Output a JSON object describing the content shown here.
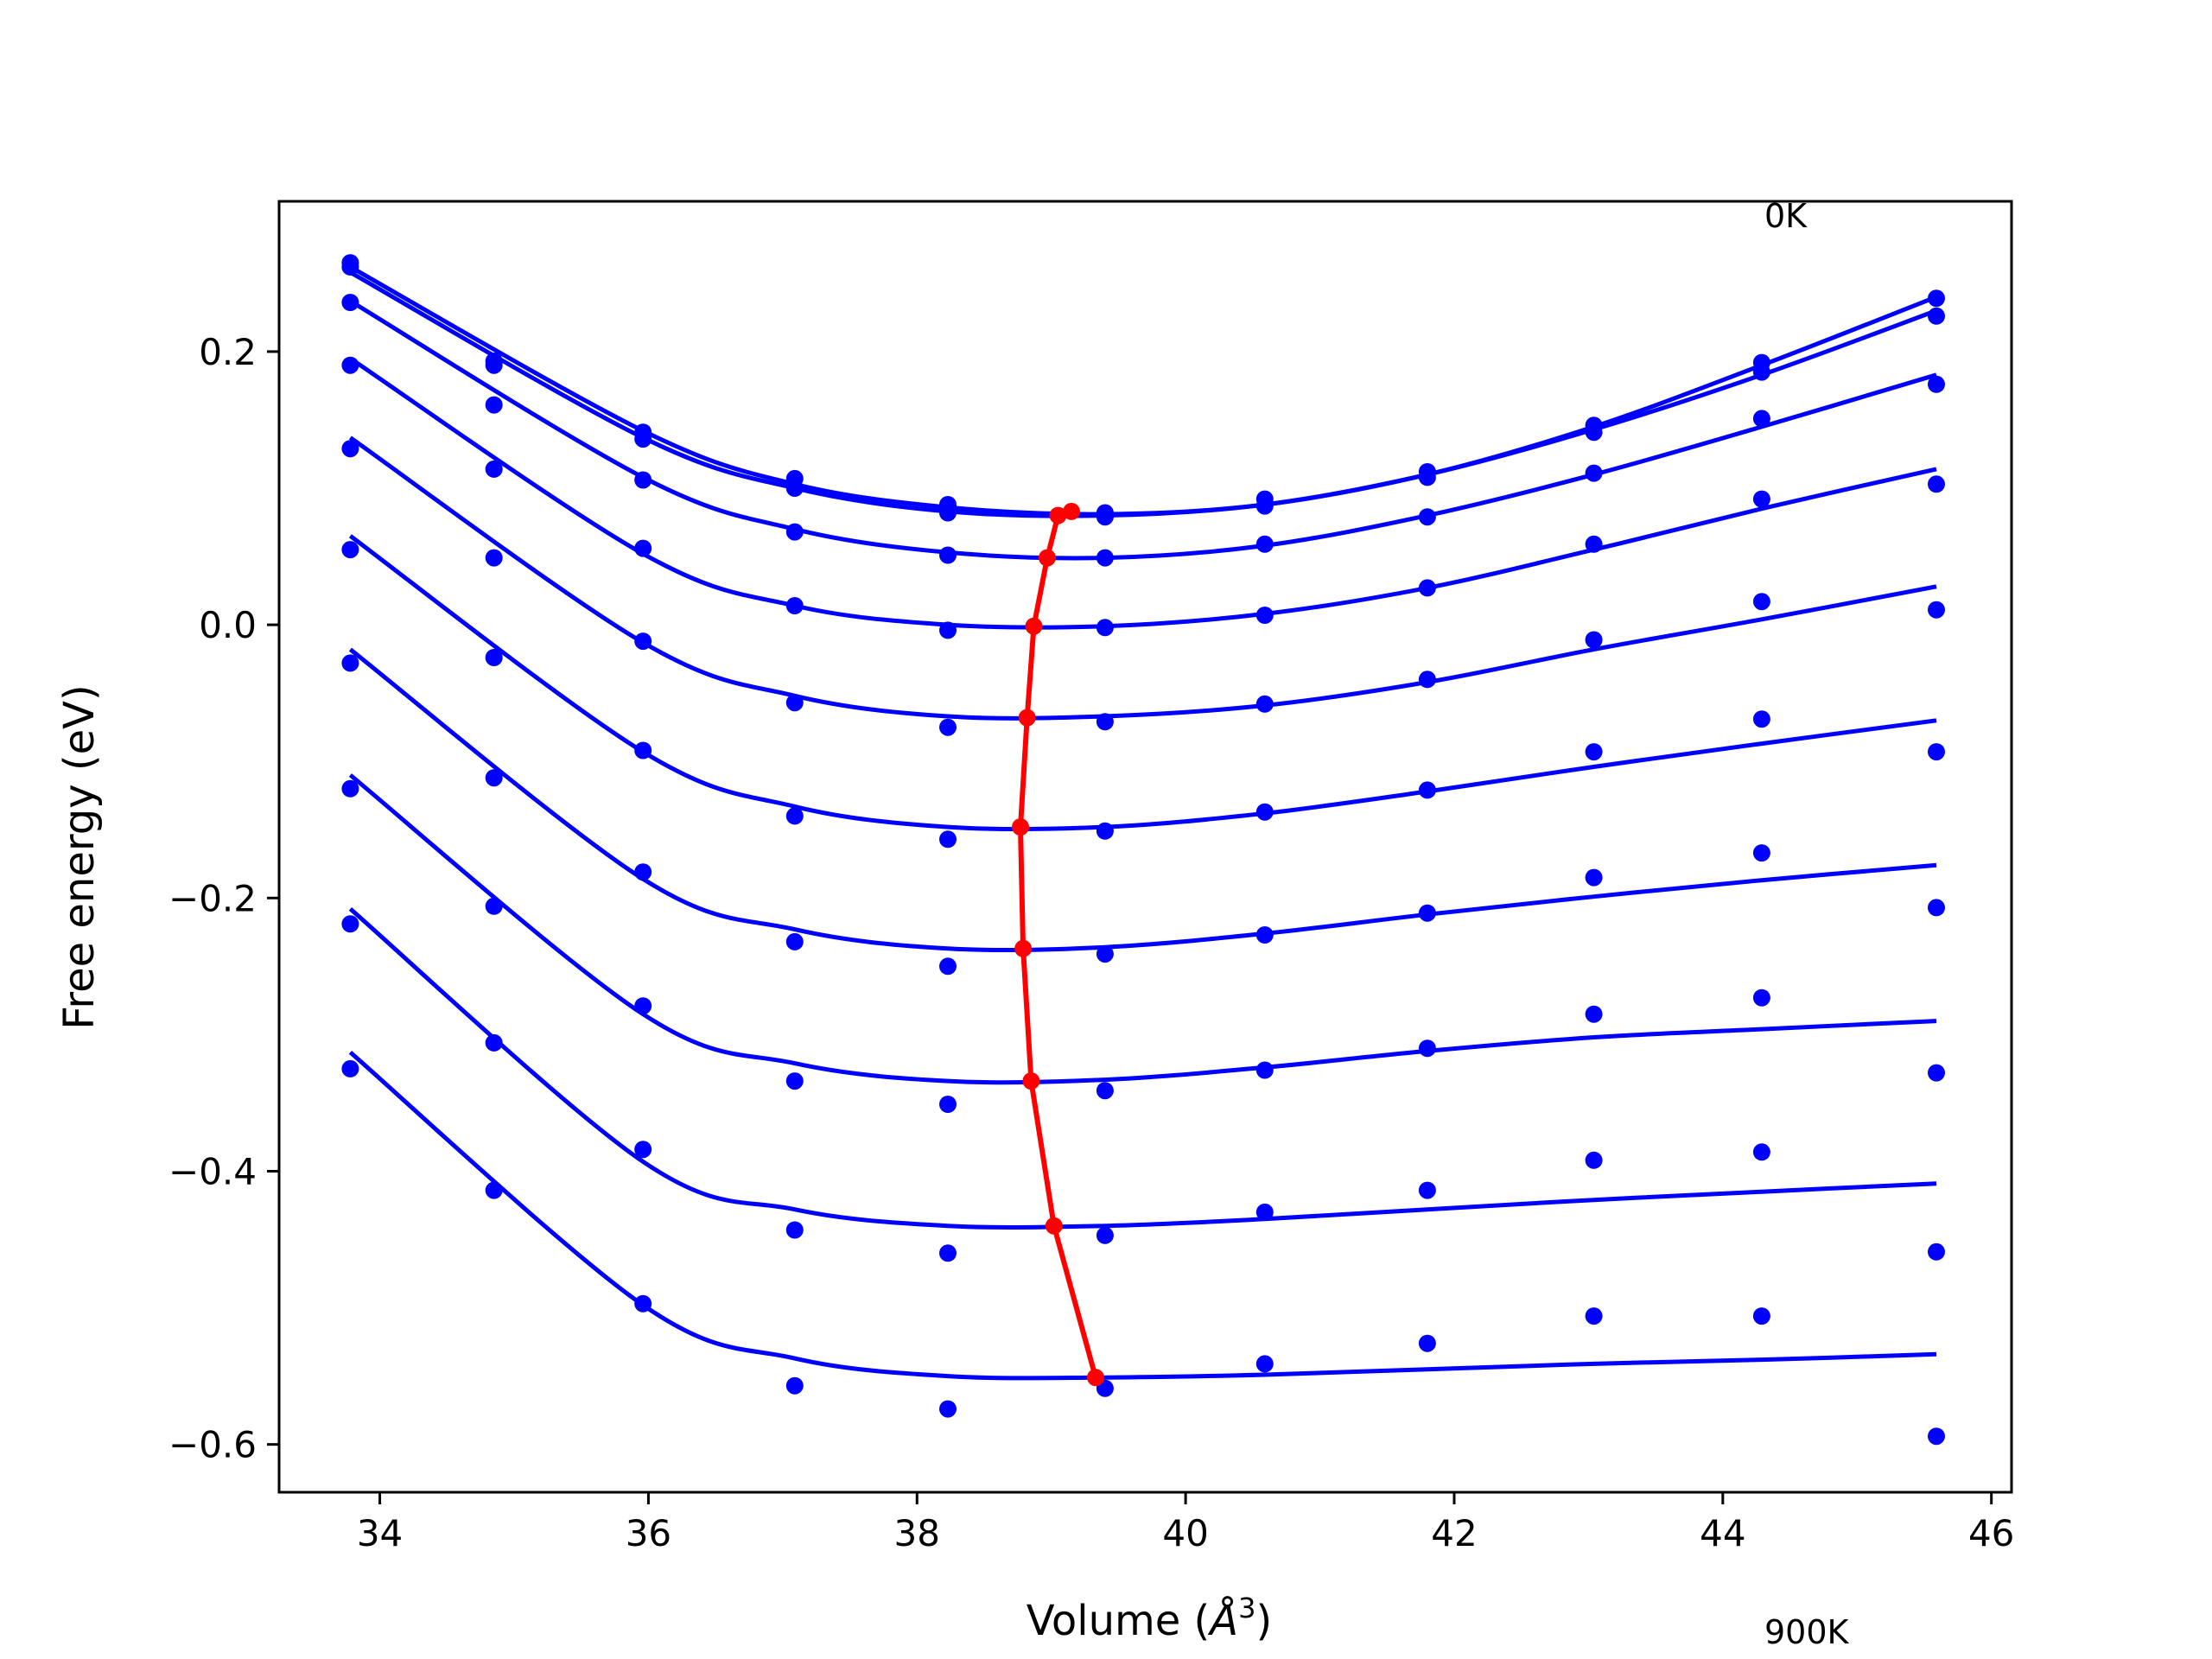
{
  "chart_data": {
    "type": "scatter",
    "title": "",
    "xlabel": "Volume (Å³)",
    "xlabel_parts": {
      "prefix": "Volume (",
      "symbol": "Å",
      "superscript": "3",
      "suffix": ")"
    },
    "ylabel": "Free energy (eV)",
    "xlim": [
      33.25,
      46.15
    ],
    "ylim": [
      -0.635,
      0.31
    ],
    "xticks": [
      34,
      36,
      38,
      40,
      42,
      44,
      46
    ],
    "xtick_labels": [
      "34",
      "36",
      "38",
      "40",
      "42",
      "44",
      "46"
    ],
    "yticks": [
      0.2,
      0.0,
      -0.2,
      -0.4,
      -0.6
    ],
    "ytick_labels": [
      "0.2",
      "0.0",
      "−0.2",
      "−0.4",
      "−0.6"
    ],
    "grid": false,
    "legend": "none",
    "annotations": [
      "0K",
      "900K"
    ],
    "colors": {
      "data": "#0000ff",
      "minimum_line": "#ff0000",
      "frame": "#000000",
      "background": "#ffffff"
    },
    "x_points": [
      33.78,
      34.85,
      35.96,
      37.09,
      38.23,
      39.4,
      40.59,
      41.8,
      43.04,
      44.29,
      45.59
    ],
    "series": [
      {
        "fit_points": [
          [
            33.78,
            0.262
          ],
          [
            35.96,
            0.142
          ],
          [
            37.09,
            0.103
          ],
          [
            38.23,
            0.086
          ],
          [
            39.4,
            0.081
          ],
          [
            40.59,
            0.088
          ],
          [
            41.8,
            0.11
          ],
          [
            43.04,
            0.145
          ],
          [
            44.29,
            0.19
          ],
          [
            45.59,
            0.24
          ]
        ],
        "points": [
          0.265,
          0.193,
          0.141,
          0.107,
          0.088,
          0.082,
          0.092,
          0.112,
          0.146,
          0.192,
          0.239
        ]
      },
      {
        "fit_points": [
          [
            33.78,
            0.258
          ],
          [
            35.96,
            0.137
          ],
          [
            37.09,
            0.1
          ],
          [
            38.23,
            0.083
          ],
          [
            39.4,
            0.08
          ],
          [
            40.59,
            0.088
          ],
          [
            41.8,
            0.11
          ],
          [
            43.04,
            0.143
          ],
          [
            44.29,
            0.183
          ],
          [
            45.59,
            0.23
          ]
        ],
        "points": [
          0.262,
          0.19,
          0.136,
          0.1,
          0.082,
          0.079,
          0.087,
          0.108,
          0.141,
          0.185,
          0.226
        ]
      },
      {
        "fit_points": [
          [
            33.78,
            0.237
          ],
          [
            35.96,
            0.108
          ],
          [
            37.09,
            0.07
          ],
          [
            38.23,
            0.053
          ],
          [
            39.4,
            0.049
          ],
          [
            40.59,
            0.058
          ],
          [
            41.8,
            0.08
          ],
          [
            43.04,
            0.11
          ],
          [
            44.29,
            0.145
          ],
          [
            45.59,
            0.183
          ]
        ],
        "points": [
          0.236,
          0.161,
          0.106,
          0.068,
          0.051,
          0.049,
          0.059,
          0.079,
          0.111,
          0.151,
          0.176
        ]
      },
      {
        "fit_points": [
          [
            33.78,
            0.195
          ],
          [
            35.96,
            0.052
          ],
          [
            37.09,
            0.014
          ],
          [
            38.23,
            0.0
          ],
          [
            39.4,
            -0.001
          ],
          [
            40.59,
            0.008
          ],
          [
            41.8,
            0.027
          ],
          [
            43.04,
            0.055
          ],
          [
            44.29,
            0.085
          ],
          [
            45.59,
            0.114
          ]
        ],
        "points": [
          0.19,
          0.114,
          0.056,
          0.014,
          -0.004,
          -0.002,
          0.007,
          0.027,
          0.059,
          0.092,
          0.103
        ]
      },
      {
        "fit_points": [
          [
            33.78,
            0.137
          ],
          [
            35.96,
            -0.013
          ],
          [
            37.09,
            -0.052
          ],
          [
            38.23,
            -0.067
          ],
          [
            39.4,
            -0.067
          ],
          [
            40.59,
            -0.059
          ],
          [
            41.8,
            -0.042
          ],
          [
            43.04,
            -0.018
          ],
          [
            44.29,
            0.004
          ],
          [
            45.59,
            0.028
          ]
        ],
        "points": [
          0.129,
          0.049,
          -0.012,
          -0.057,
          -0.075,
          -0.071,
          -0.058,
          -0.04,
          -0.011,
          0.017,
          0.011
        ]
      },
      {
        "fit_points": [
          [
            33.78,
            0.065
          ],
          [
            35.96,
            -0.093
          ],
          [
            37.09,
            -0.133
          ],
          [
            38.23,
            -0.148
          ],
          [
            39.4,
            -0.148
          ],
          [
            40.59,
            -0.138
          ],
          [
            41.8,
            -0.122
          ],
          [
            43.04,
            -0.104
          ],
          [
            44.29,
            -0.087
          ],
          [
            45.59,
            -0.07
          ]
        ],
        "points": [
          0.055,
          -0.024,
          -0.092,
          -0.14,
          -0.157,
          -0.151,
          -0.137,
          -0.121,
          -0.093,
          -0.069,
          -0.093
        ]
      },
      {
        "fit_points": [
          [
            33.78,
            -0.018
          ],
          [
            35.96,
            -0.186
          ],
          [
            37.09,
            -0.223
          ],
          [
            38.23,
            -0.237
          ],
          [
            39.4,
            -0.236
          ],
          [
            40.59,
            -0.226
          ],
          [
            41.8,
            -0.212
          ],
          [
            43.04,
            -0.199
          ],
          [
            44.29,
            -0.187
          ],
          [
            45.59,
            -0.176
          ]
        ],
        "points": [
          -0.028,
          -0.112,
          -0.181,
          -0.232,
          -0.25,
          -0.241,
          -0.227,
          -0.211,
          -0.185,
          -0.167,
          -0.207
        ]
      },
      {
        "fit_points": [
          [
            33.78,
            -0.11
          ],
          [
            35.96,
            -0.285
          ],
          [
            37.09,
            -0.321
          ],
          [
            38.23,
            -0.334
          ],
          [
            39.4,
            -0.333
          ],
          [
            40.59,
            -0.324
          ],
          [
            41.8,
            -0.312
          ],
          [
            43.04,
            -0.302
          ],
          [
            44.29,
            -0.296
          ],
          [
            45.59,
            -0.29
          ]
        ],
        "points": [
          -0.12,
          -0.206,
          -0.279,
          -0.334,
          -0.351,
          -0.341,
          -0.326,
          -0.31,
          -0.285,
          -0.273,
          -0.328
        ]
      },
      {
        "fit_points": [
          [
            33.78,
            -0.208
          ],
          [
            35.96,
            -0.393
          ],
          [
            37.09,
            -0.428
          ],
          [
            38.23,
            -0.44
          ],
          [
            39.4,
            -0.44
          ],
          [
            40.59,
            -0.435
          ],
          [
            41.8,
            -0.428
          ],
          [
            43.04,
            -0.421
          ],
          [
            44.29,
            -0.415
          ],
          [
            45.59,
            -0.409
          ]
        ],
        "points": [
          -0.219,
          -0.306,
          -0.384,
          -0.443,
          -0.46,
          -0.447,
          -0.43,
          -0.414,
          -0.392,
          -0.386,
          -0.459
        ]
      },
      {
        "fit_points": [
          [
            33.78,
            -0.313
          ],
          [
            35.96,
            -0.498
          ],
          [
            37.09,
            -0.537
          ],
          [
            38.23,
            -0.55
          ],
          [
            39.4,
            -0.551
          ],
          [
            40.59,
            -0.549
          ],
          [
            41.8,
            -0.545
          ],
          [
            43.04,
            -0.541
          ],
          [
            44.29,
            -0.538
          ],
          [
            45.59,
            -0.534
          ]
        ],
        "points": [
          -0.325,
          -0.414,
          -0.497,
          -0.557,
          -0.574,
          -0.559,
          -0.541,
          -0.526,
          -0.506,
          -0.506,
          -0.594
        ]
      }
    ],
    "minimum_curve": [
      [
        39.15,
        0.083
      ],
      [
        39.05,
        0.08
      ],
      [
        38.97,
        0.049
      ],
      [
        38.87,
        -0.001
      ],
      [
        38.82,
        -0.068
      ],
      [
        38.77,
        -0.148
      ],
      [
        38.79,
        -0.237
      ],
      [
        38.85,
        -0.334
      ],
      [
        39.02,
        -0.44
      ],
      [
        39.33,
        -0.551
      ]
    ]
  }
}
